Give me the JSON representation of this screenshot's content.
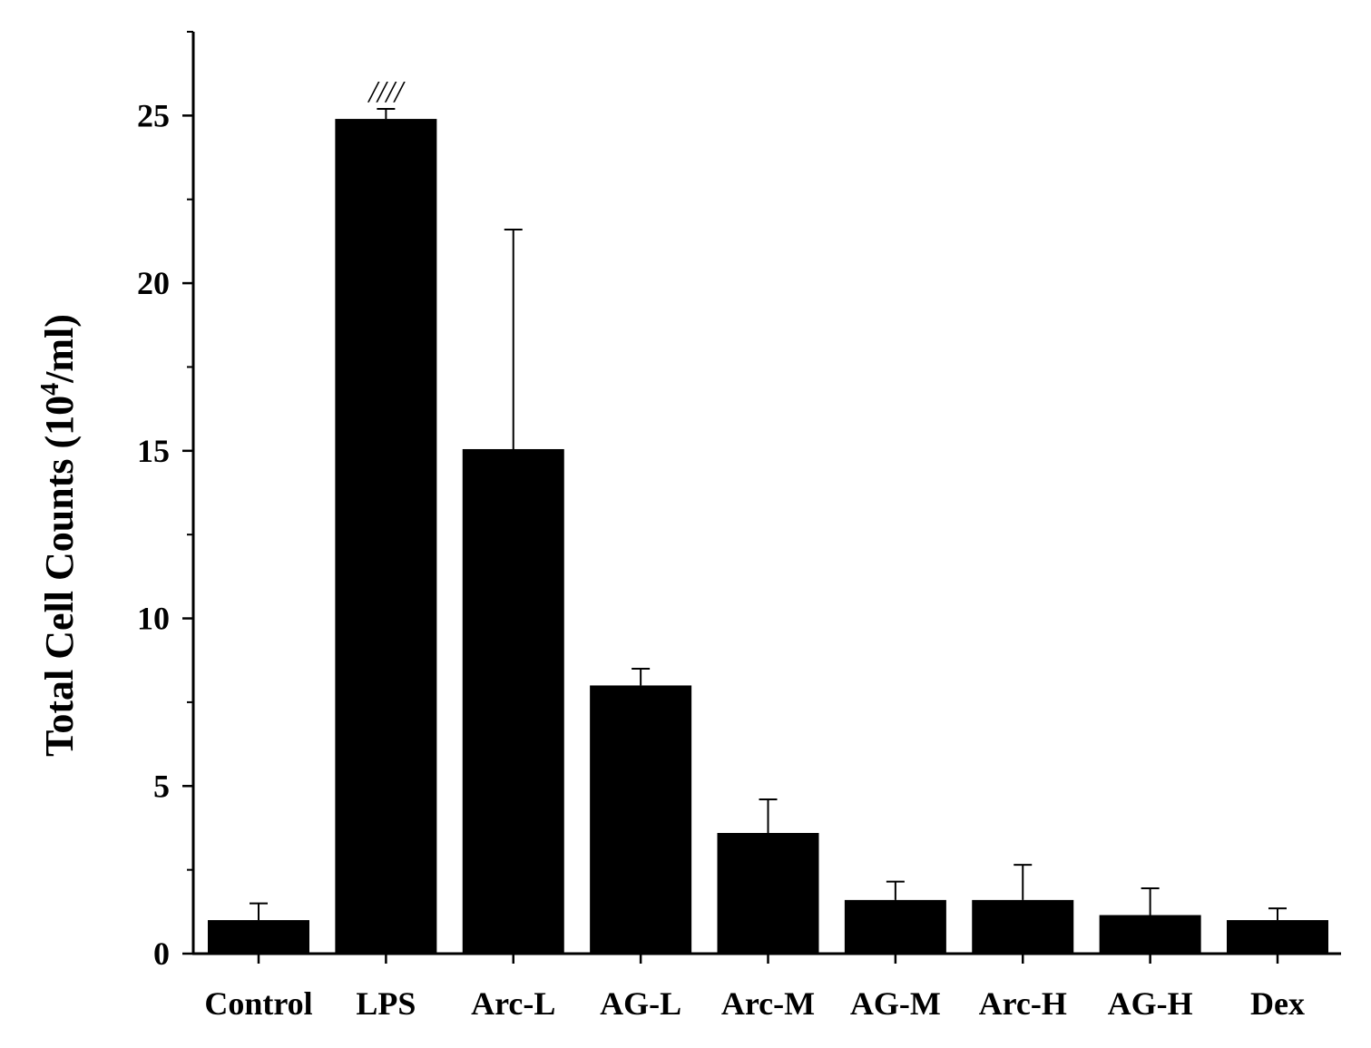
{
  "chart_data": {
    "type": "bar",
    "ylabel": {
      "main": "Total Cell Counts (10",
      "sup": "4",
      "tail": "/ml)"
    },
    "xlabel": "",
    "ylim": [
      0,
      27.5
    ],
    "yticks": [
      "0",
      "5",
      "10",
      "15",
      "20",
      "25"
    ],
    "grid": false,
    "categories": [
      "Control",
      "LPS",
      "Arc-L",
      "AG-L",
      "Arc-M",
      "AG-M",
      "Arc-H",
      "AG-H",
      "Dex"
    ],
    "values": [
      1.0,
      24.9,
      15.05,
      8.0,
      3.6,
      1.6,
      1.6,
      1.15,
      1.0
    ],
    "errors": [
      0.5,
      0.3,
      6.55,
      0.5,
      1.0,
      0.55,
      1.05,
      0.8,
      0.35
    ],
    "bar_color": "#000000",
    "annotations": [
      {
        "category": "LPS",
        "text": "////"
      }
    ]
  }
}
